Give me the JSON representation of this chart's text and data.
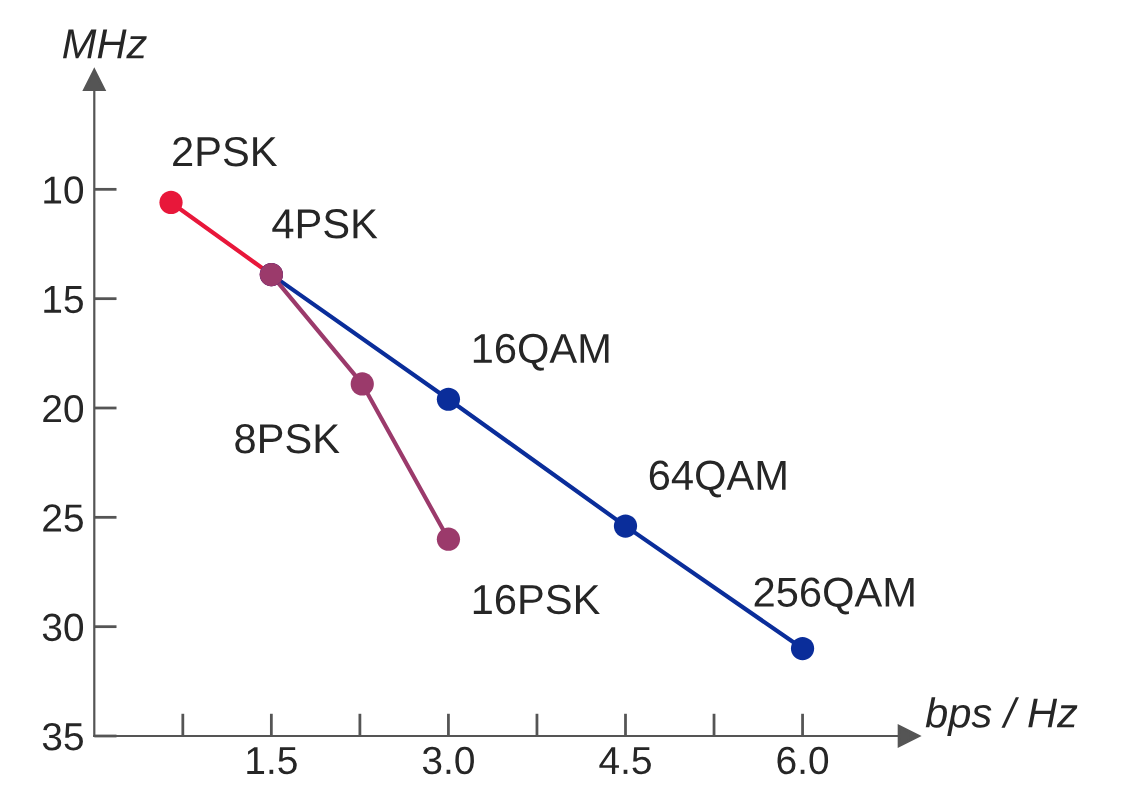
{
  "chart_data": {
    "type": "line",
    "xlabel": "bps / Hz",
    "ylabel": "MHz",
    "xlim": [
      0,
      6.9
    ],
    "ylim": [
      35,
      5
    ],
    "xticks": [
      {
        "value": 0.75,
        "label": null
      },
      1.5,
      {
        "value": 2.25,
        "label": null
      },
      "3.0",
      {
        "value": 3.75,
        "label": null
      },
      4.5,
      {
        "value": 5.25,
        "label": null
      },
      "6.0"
    ],
    "yticks": [
      10,
      15,
      20,
      25,
      30,
      35
    ],
    "grid": false,
    "legend": false,
    "marker": "circle",
    "line_style": "solid",
    "series": [
      {
        "color": "#e8173a",
        "x": [
          0.65,
          1.5
        ],
        "values": [
          10.6,
          13.9
        ]
      },
      {
        "color": "#0a2d9a",
        "x": [
          1.5,
          3.0,
          4.5,
          6.0
        ],
        "values": [
          13.9,
          19.6,
          25.4,
          31.0
        ]
      },
      {
        "color": "#9b3a6b",
        "x": [
          1.5,
          2.27,
          3.0
        ],
        "values": [
          13.9,
          18.9,
          26.0
        ]
      }
    ],
    "annotations": [
      {
        "text": "2PSK",
        "x": 0.65,
        "y": 10.6
      },
      {
        "text": "4PSK",
        "x": 1.5,
        "y": 13.9
      },
      {
        "text": "8PSK",
        "x": 2.27,
        "y": 18.9
      },
      {
        "text": "16PSK",
        "x": 3.0,
        "y": 26.0
      },
      {
        "text": "16QAM",
        "x": 3.0,
        "y": 19.6
      },
      {
        "text": "64QAM",
        "x": 4.5,
        "y": 25.4
      },
      {
        "text": "256QAM",
        "x": 6.0,
        "y": 31.0
      }
    ]
  }
}
